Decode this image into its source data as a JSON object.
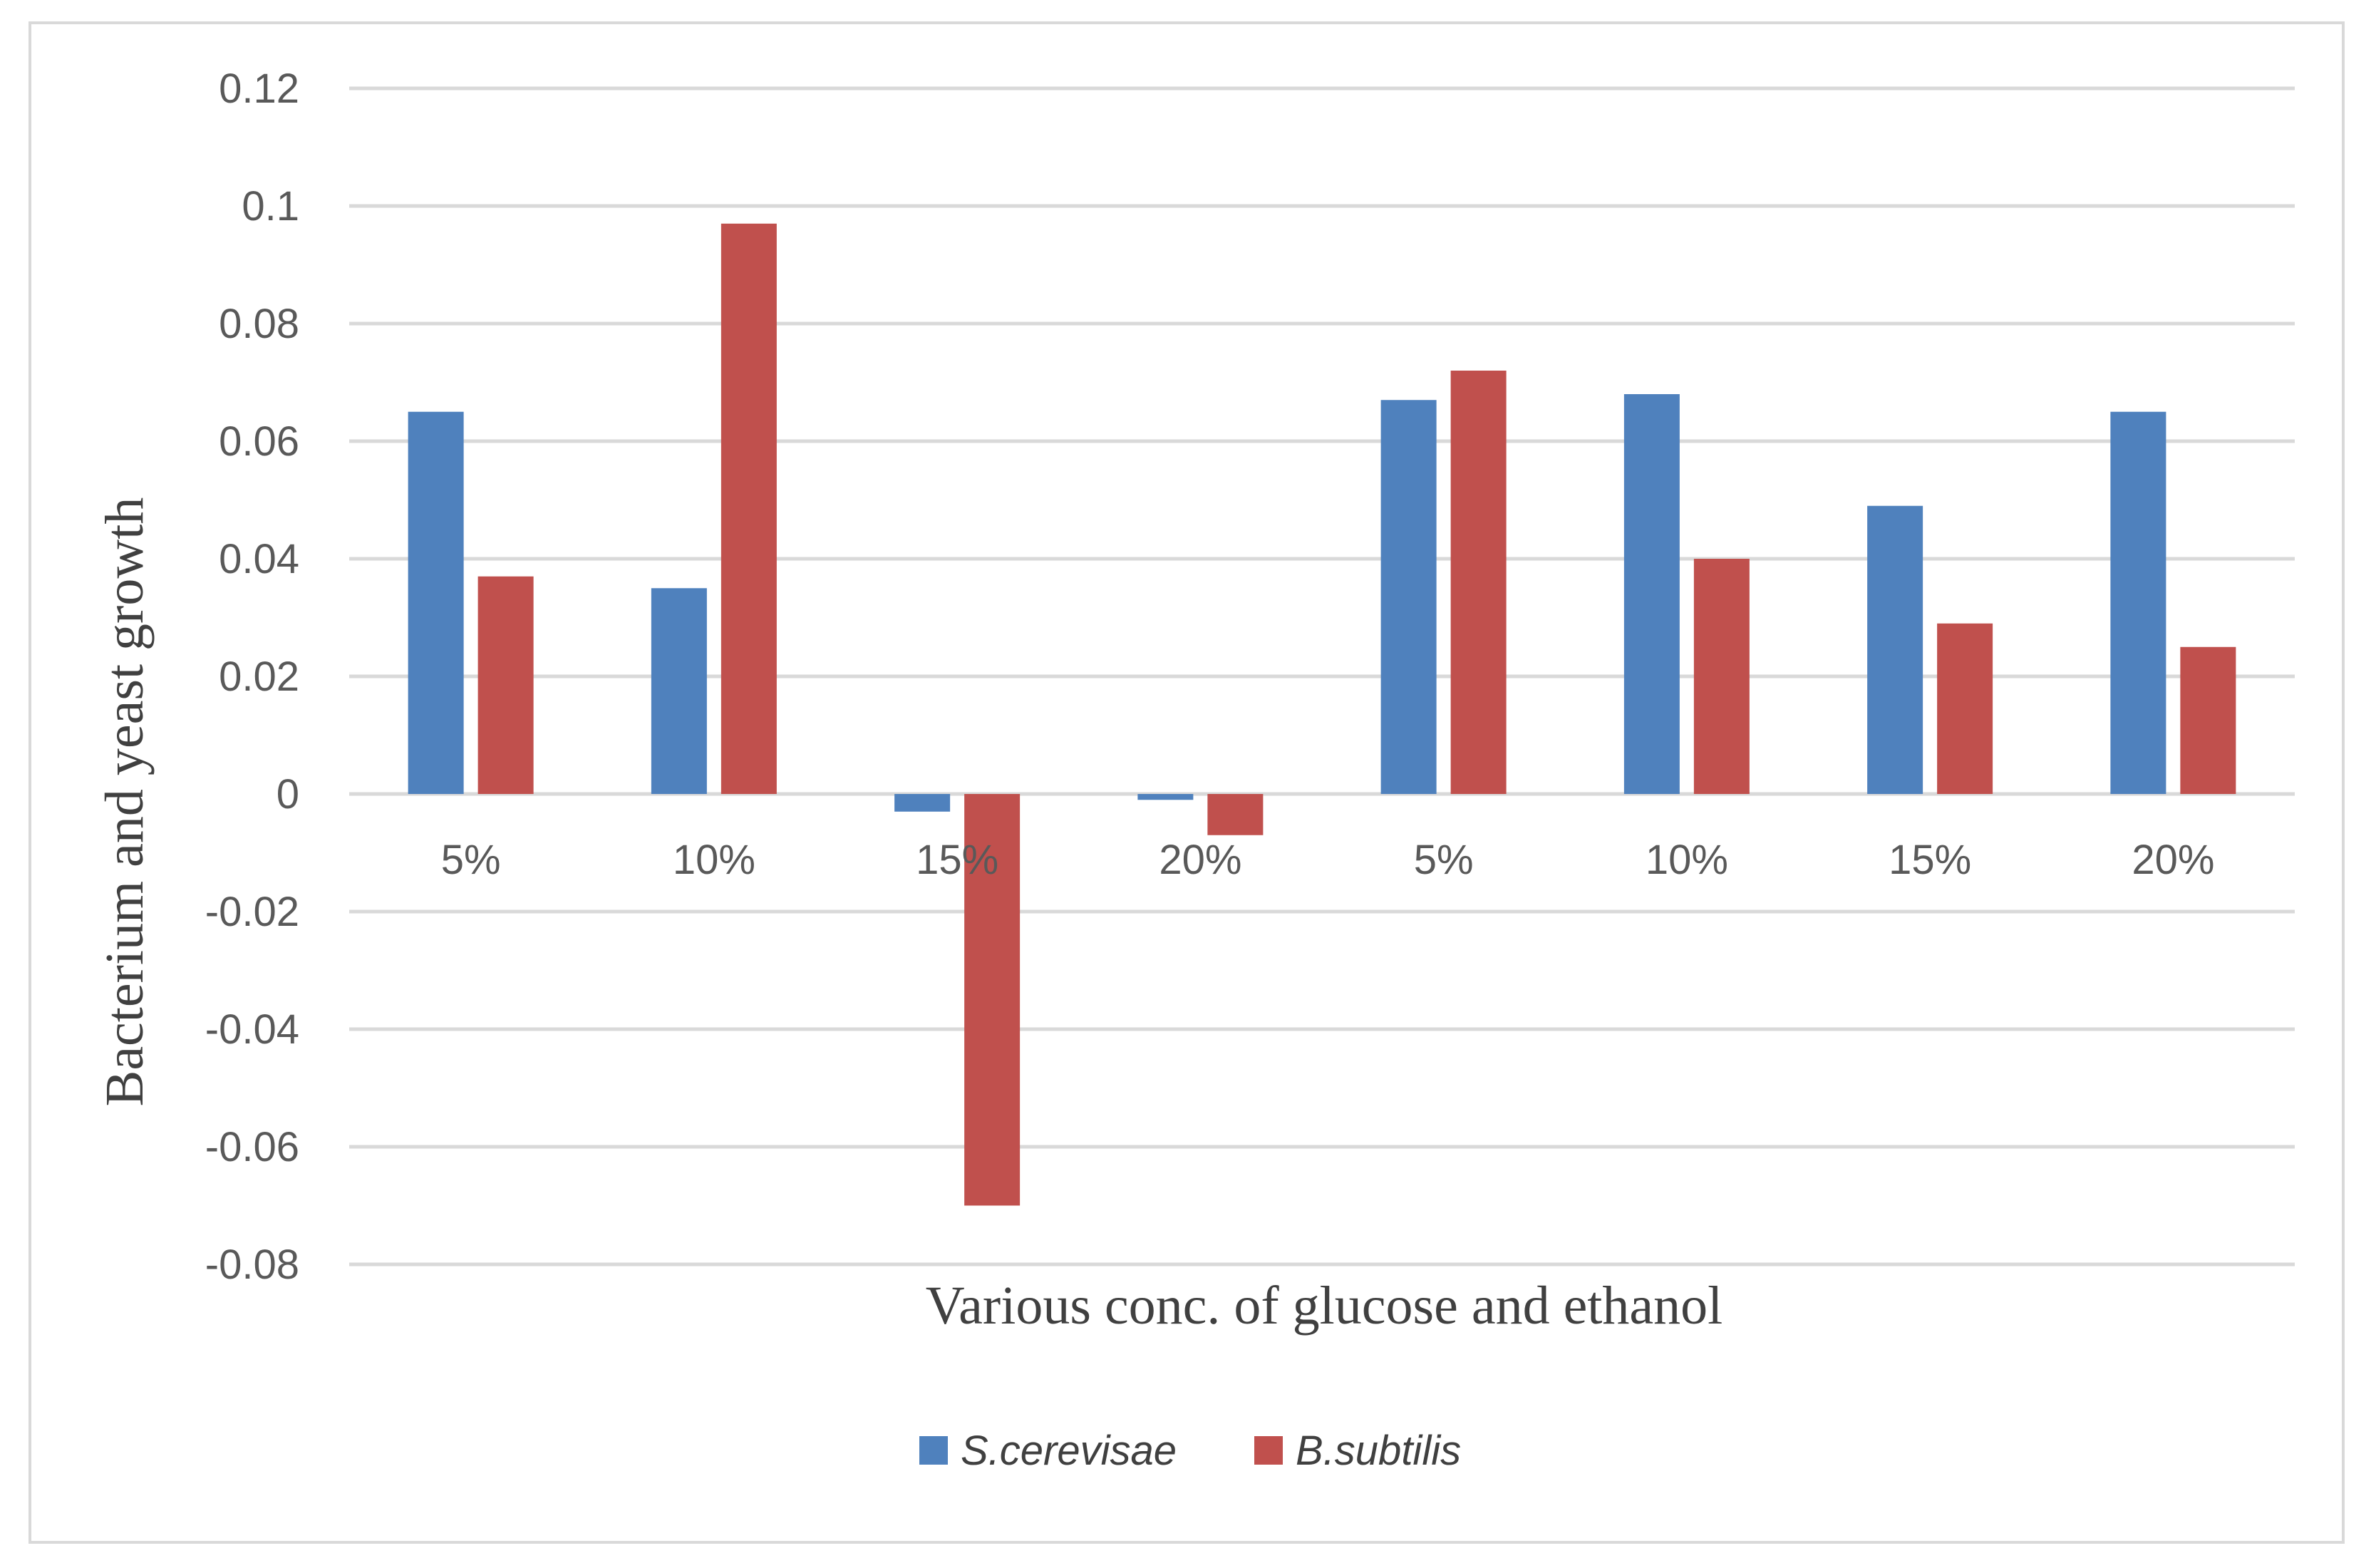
{
  "chart_data": {
    "type": "bar",
    "categories": [
      "5%",
      "10%",
      "15%",
      "20%",
      "5%",
      "10%",
      "15%",
      "20%"
    ],
    "series": [
      {
        "name": "S.cerevisae",
        "color": "#4f81bd",
        "values": [
          0.065,
          0.035,
          -0.003,
          -0.001,
          0.067,
          0.068,
          0.049,
          0.065
        ]
      },
      {
        "name": "B.subtilis",
        "color": "#c0504d",
        "values": [
          0.037,
          0.097,
          -0.07,
          -0.007,
          0.072,
          0.04,
          0.029,
          0.025
        ]
      }
    ],
    "xlabel": "Various conc. of glucose and ethanol",
    "ylabel": "Bacterium and yeast growth",
    "ylim": [
      -0.08,
      0.12
    ],
    "yticks": [
      "0.12",
      "0.1",
      "0.08",
      "0.06",
      "0.04",
      "0.02",
      "0",
      "-0.02",
      "-0.04",
      "-0.06",
      "-0.08"
    ],
    "grid": true,
    "legend_position": "bottom"
  }
}
